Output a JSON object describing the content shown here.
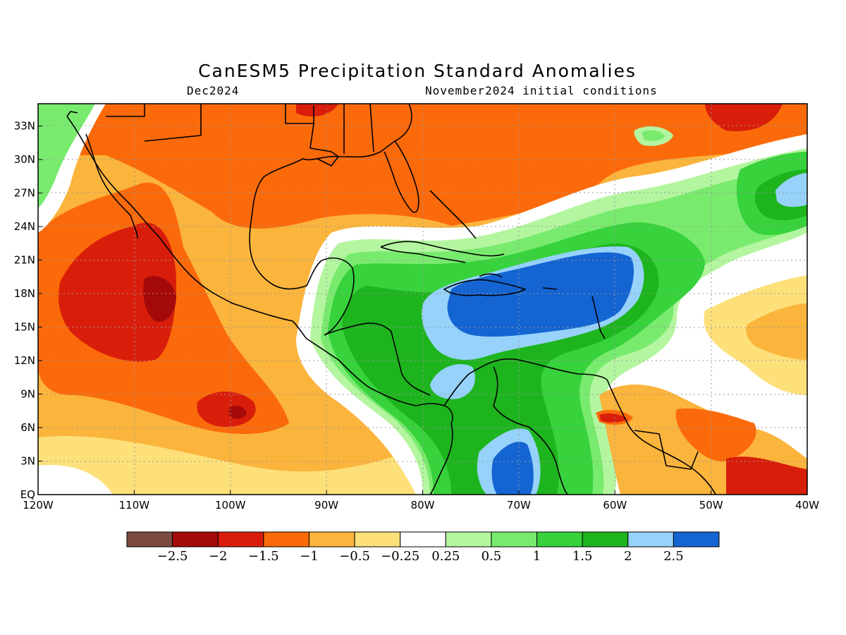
{
  "title": "CanESM5 Precipitation Standard Anomalies",
  "subtitle_left": "Dec2024",
  "subtitle_right": "November2024 initial conditions",
  "map": {
    "lon_range": [
      -120,
      -40
    ],
    "lat_range": [
      0,
      35
    ],
    "x_ticks": [
      "120W",
      "110W",
      "100W",
      "90W",
      "80W",
      "70W",
      "60W",
      "50W",
      "40W"
    ],
    "y_ticks": [
      "EQ",
      "3N",
      "6N",
      "9N",
      "12N",
      "15N",
      "18N",
      "21N",
      "24N",
      "27N",
      "30N",
      "33N"
    ],
    "gridlines": true
  },
  "legend": {
    "colors": [
      "#7b4a3f",
      "#a50a0a",
      "#d81e0a",
      "#fb6a0a",
      "#fbb43c",
      "#fde07a",
      "#ffffff",
      "#b4f5a0",
      "#78eb6e",
      "#37d23c",
      "#1eb41e",
      "#96d2fa",
      "#1464d2"
    ],
    "labels": [
      "-2.5",
      "-2",
      "-1.5",
      "-1",
      "-0.5",
      "-0.25",
      "0.25",
      "0.5",
      "1",
      "1.5",
      "2",
      "2.5"
    ]
  }
}
